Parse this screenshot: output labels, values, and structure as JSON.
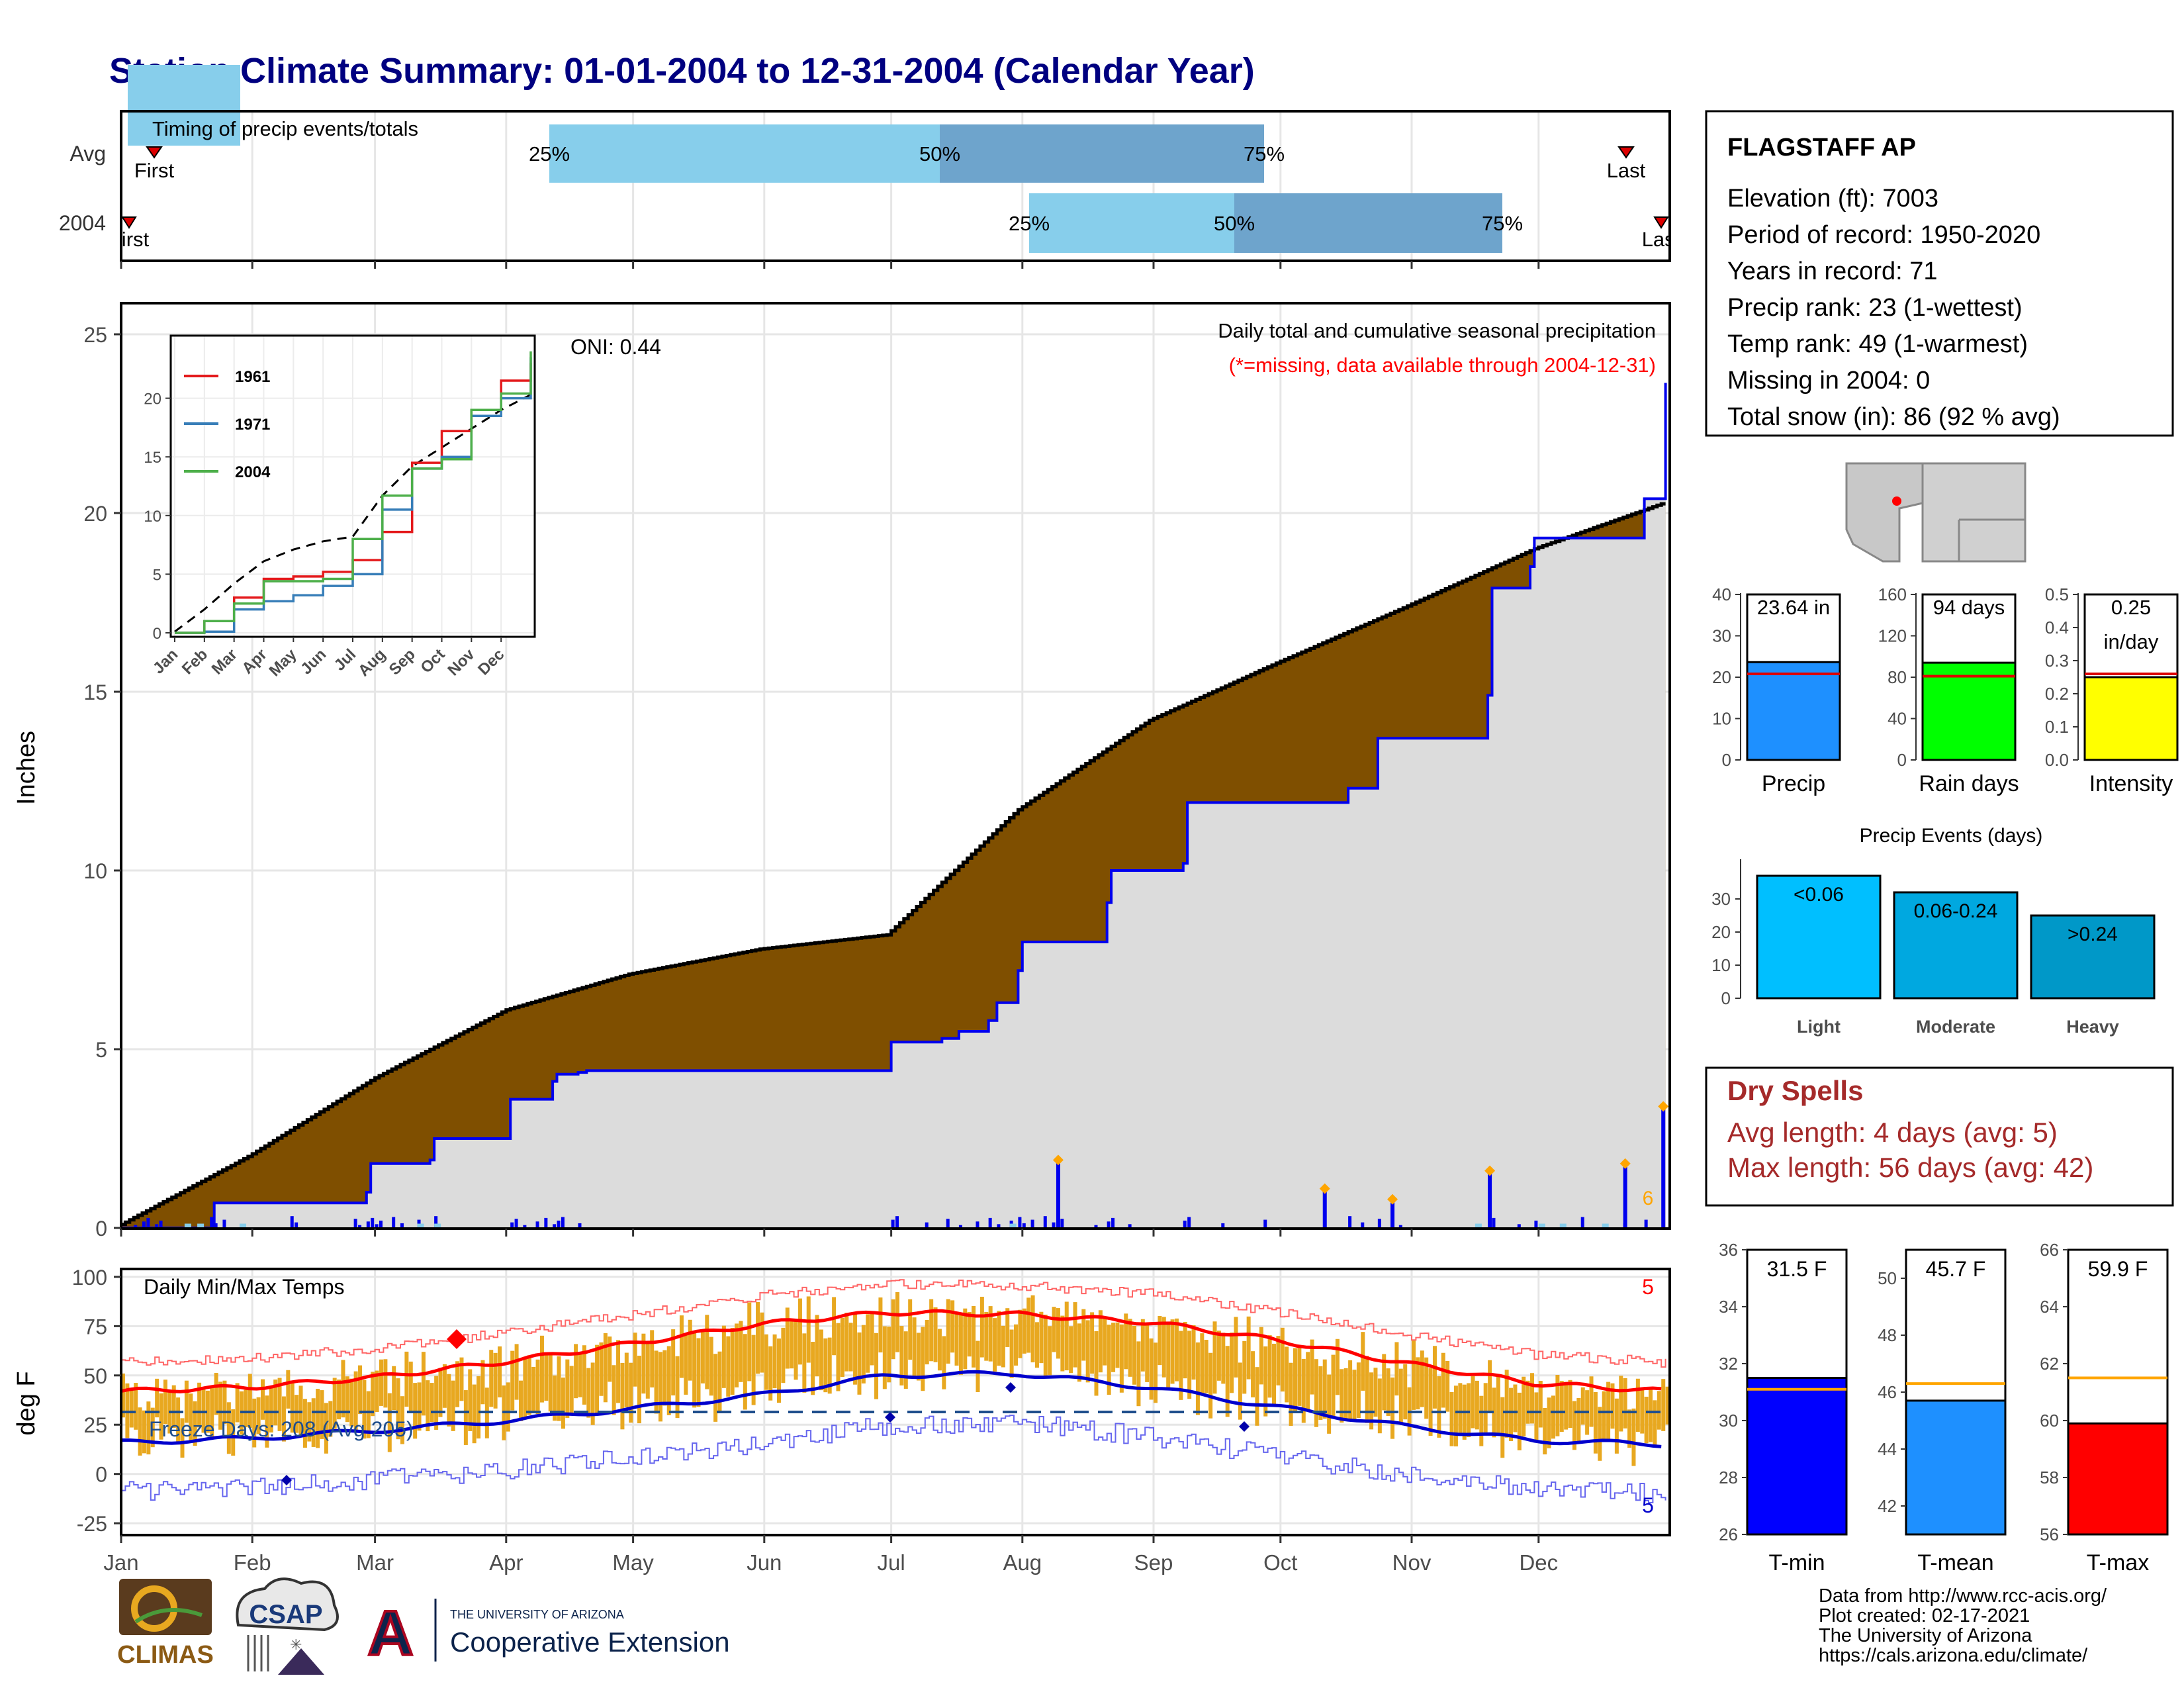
{
  "title": "Station Climate Summary: 01-01-2004 to 12-31-2004 (Calendar Year)",
  "timing": {
    "label": "Timing of precip events/totals",
    "rows": [
      "Avg",
      "2004"
    ],
    "first": "First",
    "last": "Last",
    "p25": "25%",
    "p50": "50%",
    "p75": "75%"
  },
  "months": [
    "Jan",
    "Feb",
    "Mar",
    "Apr",
    "May",
    "Jun",
    "Jul",
    "Aug",
    "Sep",
    "Oct",
    "Nov",
    "Dec"
  ],
  "precip": {
    "ylabel": "Inches",
    "oni": "ONI: 0.44",
    "subtitle": "Daily total and cumulative seasonal precipitation",
    "note": "(*=missing, data available through 2004-12-31)",
    "count_label": "6"
  },
  "inset": {
    "legend": [
      "1961",
      "1971",
      "2004"
    ],
    "months": [
      "Jan",
      "Feb",
      "Mar",
      "Apr",
      "May",
      "Jun",
      "Jul",
      "Aug",
      "Sep",
      "Oct",
      "Nov",
      "Dec"
    ]
  },
  "temps": {
    "ylabel": "deg F",
    "title": "Daily Min/Max Temps",
    "freeze": "Freeze Days: 208 (Avg 205)",
    "count_max": "5",
    "count_min": "5"
  },
  "station": {
    "name": "FLAGSTAFF AP",
    "lines": [
      "Elevation (ft): 7003",
      "Period of record: 1950-2020",
      "Years in record: 71",
      "Precip rank: 23 (1-wettest)",
      "Temp rank: 49 (1-warmest)",
      "Missing in 2004: 0",
      "Total snow (in): 86 (92 % avg)"
    ]
  },
  "summary_bars": {
    "precip_label": "23.64 in",
    "rain_days_label": "94 days",
    "intensity_label": "0.25\nin/day",
    "labels": [
      "Precip",
      "Rain days",
      "Intensity"
    ]
  },
  "events": {
    "title": "Precip Events (days)",
    "categories": [
      "Light",
      "Moderate",
      "Heavy"
    ],
    "bar_labels": [
      "<0.06",
      "0.06-0.24",
      ">0.24"
    ]
  },
  "dry": {
    "title": "Dry Spells",
    "avg": "Avg length: 4 days (avg: 5)",
    "max": "Max length: 56 days (avg: 42)"
  },
  "temp_bars": {
    "labels": [
      "T-min",
      "T-mean",
      "T-max"
    ],
    "values_text": [
      "31.5 F",
      "45.7 F",
      "59.9 F"
    ]
  },
  "logos": {
    "climas": "CLIMAS",
    "csap": "CSAP",
    "ua_line1": "THE UNIVERSITY OF ARIZONA",
    "ua_line2": "Cooperative Extension",
    "ua_letter": "A"
  },
  "footer": [
    "Data from http://www.rcc-acis.org/",
    "Plot created: 02-17-2021",
    "The University of Arizona",
    "https://cals.arizona.edu/climate/"
  ],
  "colors": {
    "title": "#000080",
    "above": "#7f4f00",
    "below_green": "#1a8c1a",
    "cum_fill": "#dcdcdc",
    "precip_line": "#0000ee",
    "temp_bar": "#e8a820",
    "tmax": "#ff0000",
    "tmin": "#0000cc",
    "dry": "#a52a2a",
    "light_q": "#87ceeb",
    "dark_q": "#6ea4cc"
  },
  "chart_data": [
    {
      "type": "area",
      "name": "cumulative_precip",
      "xlabel": "",
      "ylabel": "Inches",
      "ylim": [
        0,
        26
      ],
      "avg_cumulative": {
        "day": [
          0,
          30,
          60,
          91,
          120,
          151,
          181,
          212,
          243,
          273,
          304,
          334,
          365
        ],
        "value": [
          0.1,
          2.0,
          4.2,
          6.1,
          7.1,
          7.8,
          8.2,
          11.7,
          14.2,
          15.8,
          17.4,
          19.0,
          20.3
        ]
      },
      "cumulative_2004": {
        "day": [
          0,
          21,
          22,
          58,
          59,
          73,
          74,
          90,
          92,
          102,
          103,
          108,
          110,
          181,
          182,
          194,
          198,
          205,
          207,
          212,
          213,
          233,
          234,
          251,
          252,
          260,
          290,
          297,
          323,
          324,
          333,
          334,
          360,
          365
        ],
        "value": [
          0,
          0,
          0.7,
          1.0,
          1.8,
          1.9,
          2.5,
          2.5,
          3.6,
          4.1,
          4.3,
          4.35,
          4.4,
          4.4,
          5.2,
          5.3,
          5.5,
          5.8,
          6.3,
          7.2,
          8.0,
          9.1,
          10.0,
          10.2,
          11.9,
          11.9,
          12.3,
          13.7,
          14.9,
          17.9,
          18.5,
          19.3,
          20.4,
          23.64
        ]
      },
      "daily_precip_tall": {
        "day": [
          221,
          284,
          300,
          323,
          355,
          364
        ],
        "value": [
          1.9,
          1.1,
          0.8,
          1.6,
          1.8,
          3.4
        ]
      },
      "total_2004": 23.64
    },
    {
      "type": "line",
      "name": "inset_cumulative",
      "ylim": [
        0,
        25
      ],
      "x": [
        0,
        1,
        2,
        3,
        4,
        5,
        6,
        7,
        8,
        9,
        10,
        11,
        12
      ],
      "series": [
        {
          "name": "1961",
          "values": [
            0,
            1.0,
            3.0,
            4.6,
            4.8,
            5.2,
            6.2,
            8.6,
            14.5,
            17.2,
            19.0,
            21.5,
            23.0
          ]
        },
        {
          "name": "1971",
          "values": [
            0,
            0.1,
            2.0,
            2.7,
            3.2,
            4.0,
            5.0,
            10.5,
            14.0,
            15.0,
            18.5,
            20.0,
            23.5
          ]
        },
        {
          "name": "2004",
          "values": [
            0,
            1.0,
            2.5,
            4.4,
            4.4,
            4.6,
            8.0,
            11.7,
            14.0,
            14.8,
            19.0,
            20.4,
            24.0
          ]
        }
      ]
    },
    {
      "type": "line",
      "name": "daily_temps",
      "ylim": [
        -25,
        100
      ],
      "normal_max": {
        "day": [
          0,
          30,
          60,
          91,
          120,
          151,
          181,
          212,
          243,
          273,
          304,
          334,
          365
        ],
        "value": [
          42,
          44,
          49,
          57,
          66,
          76,
          82,
          81,
          77,
          68,
          56,
          46,
          42
        ]
      },
      "normal_min": {
        "day": [
          0,
          30,
          60,
          91,
          120,
          151,
          181,
          212,
          243,
          273,
          304,
          334,
          365
        ],
        "value": [
          16,
          18,
          22,
          27,
          33,
          40,
          50,
          51,
          44,
          34,
          24,
          17,
          15
        ]
      },
      "freeze_line": 32,
      "freeze_days": 208,
      "freeze_days_avg": 205
    },
    {
      "type": "bar",
      "name": "annual_summary",
      "categories": [
        "Precip",
        "Rain days",
        "Intensity"
      ],
      "values": [
        23.64,
        94,
        0.25
      ],
      "averages": [
        20.8,
        81,
        0.26
      ],
      "ylims": [
        [
          0,
          40
        ],
        [
          0,
          160
        ],
        [
          0,
          0.5
        ]
      ]
    },
    {
      "type": "bar",
      "name": "precip_events",
      "categories": [
        "Light",
        "Moderate",
        "Heavy"
      ],
      "values": [
        37,
        32,
        25
      ],
      "ylim": [
        0,
        40
      ]
    },
    {
      "type": "bar",
      "name": "annual_temps",
      "categories": [
        "T-min",
        "T-mean",
        "T-max"
      ],
      "values": [
        31.5,
        45.7,
        59.9
      ],
      "averages": [
        31.1,
        46.3,
        61.5
      ],
      "ylims": [
        [
          26,
          36
        ],
        [
          41,
          51
        ],
        [
          56,
          66
        ]
      ]
    }
  ]
}
